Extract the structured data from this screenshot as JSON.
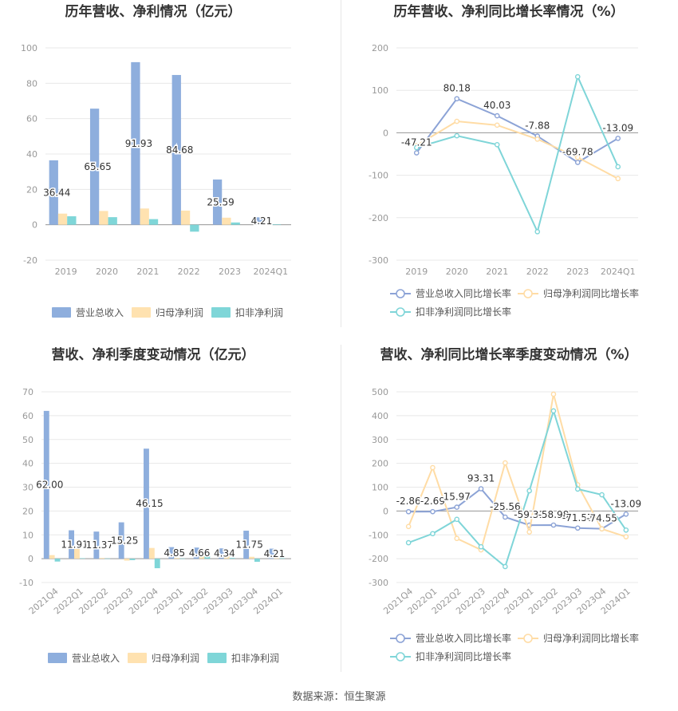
{
  "source_text": "数据来源：恒生聚源",
  "colors": {
    "revenue": "#8eaedd",
    "net_profit": "#ffe2b0",
    "deducted_profit": "#7fd6d8",
    "revenue_line": "#8ca3d6",
    "net_line": "#ffdca5",
    "deducted_line": "#7fd5d8",
    "grid": "#e8e8e8",
    "axis_text": "#999999",
    "title": "#333333"
  },
  "chart_data": [
    {
      "type": "bar",
      "title": "历年营收、净利情况（亿元）",
      "categories": [
        "2019",
        "2020",
        "2021",
        "2022",
        "2023",
        "2024Q1"
      ],
      "ylim": [
        -20,
        100
      ],
      "yticks": [
        -20,
        0,
        20,
        40,
        60,
        80,
        100
      ],
      "series": [
        {
          "name": "营业总收入",
          "values": [
            36.44,
            65.65,
            91.93,
            84.68,
            25.59,
            4.21
          ]
        },
        {
          "name": "归母净利润",
          "values": [
            6.3,
            7.8,
            9.2,
            8.0,
            4.0,
            0.5
          ]
        },
        {
          "name": "扣非净利润",
          "values": [
            4.8,
            4.3,
            3.2,
            -3.9,
            1.3,
            0.3
          ]
        }
      ],
      "data_labels": [
        "36.44",
        "65.65",
        "91.93",
        "84.68",
        "25.59",
        "4.21"
      ],
      "legend_position": "bottom"
    },
    {
      "type": "line",
      "title": "历年营收、净利同比增长率情况（%）",
      "categories": [
        "2019",
        "2020",
        "2021",
        "2022",
        "2023",
        "2024Q1"
      ],
      "ylim": [
        -300,
        200
      ],
      "yticks": [
        -300,
        -200,
        -100,
        0,
        100,
        200
      ],
      "series": [
        {
          "name": "营业总收入同比增长率",
          "values": [
            -47.21,
            80.18,
            40.03,
            -7.88,
            -69.78,
            -13.09
          ]
        },
        {
          "name": "归母净利润同比增长率",
          "values": [
            -30,
            27,
            18,
            -15,
            -58,
            -108
          ]
        },
        {
          "name": "扣非净利润同比增长率",
          "values": [
            -35,
            -7,
            -28,
            -233,
            132,
            -80
          ]
        }
      ],
      "data_labels": [
        "-47.21",
        "80.18",
        "40.03",
        "-7.88",
        "-69.78",
        "-13.09"
      ],
      "legend_position": "bottom"
    },
    {
      "type": "bar",
      "title": "营收、净利季度变动情况（亿元）",
      "categories": [
        "2021Q4",
        "2022Q1",
        "2022Q2",
        "2022Q3",
        "2022Q4",
        "2023Q1",
        "2023Q2",
        "2023Q3",
        "2023Q4",
        "2024Q1"
      ],
      "ylim": [
        -10,
        70
      ],
      "yticks": [
        -10,
        0,
        10,
        20,
        30,
        40,
        50,
        60,
        70
      ],
      "series": [
        {
          "name": "营业总收入",
          "values": [
            62.0,
            11.91,
            11.37,
            15.25,
            46.15,
            4.85,
            4.66,
            4.34,
            11.75,
            4.21
          ]
        },
        {
          "name": "归母净利润",
          "values": [
            1.5,
            4.5,
            0.3,
            -0.8,
            4.5,
            0.3,
            1.0,
            1.6,
            0.8,
            0.3
          ]
        },
        {
          "name": "扣非净利润",
          "values": [
            -1.2,
            0.2,
            0.1,
            -0.6,
            -4.0,
            0.1,
            1.9,
            0.3,
            -1.3,
            0.2
          ]
        }
      ],
      "data_labels": [
        "62.00",
        "11.91",
        "11.37",
        "15.25",
        "46.15",
        "4.85",
        "4.66",
        "4.34",
        "11.75",
        "4.21"
      ],
      "legend_position": "bottom"
    },
    {
      "type": "line",
      "title": "营收、净利同比增长率季度变动情况（%）",
      "categories": [
        "2021Q4",
        "2022Q1",
        "2022Q2",
        "2022Q3",
        "2022Q4",
        "2023Q1",
        "2023Q2",
        "2023Q3",
        "2023Q4",
        "2024Q1"
      ],
      "ylim": [
        -300,
        500
      ],
      "yticks": [
        -300,
        -200,
        -100,
        0,
        100,
        200,
        300,
        400,
        500
      ],
      "series": [
        {
          "name": "营业总收入同比增长率",
          "values": [
            -2.86,
            -2.69,
            15.97,
            93.31,
            -25.56,
            -59.31,
            -58.98,
            -71.57,
            -74.55,
            -13.09
          ]
        },
        {
          "name": "归母净利润同比增长率",
          "values": [
            -65,
            182,
            -115,
            -163,
            202,
            -88,
            490,
            110,
            -75,
            -108
          ]
        },
        {
          "name": "扣非净利润同比增长率",
          "values": [
            -133,
            -95,
            -35,
            -150,
            -233,
            85,
            420,
            92,
            68,
            -80
          ]
        }
      ],
      "data_labels": [
        "-2.86",
        "-2.69",
        "15.97",
        "93.31",
        "-25.56",
        "-59.31",
        "-58.98",
        "-71.57",
        "-74.55",
        "-13.09"
      ],
      "legend_position": "bottom"
    }
  ]
}
